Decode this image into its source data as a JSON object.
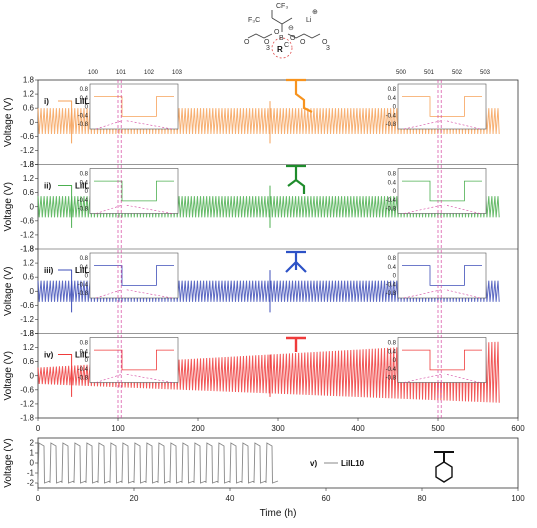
{
  "chart_data": [
    {
      "type": "line",
      "xlim": [
        0,
        600
      ],
      "ylim": [
        -1.8,
        1.8
      ],
      "xlabel": "",
      "ylabel": "Voltage (V)",
      "xticks": [
        "0",
        "100",
        "200",
        "300",
        "400",
        "500",
        "600"
      ],
      "yticks": [
        "1.8",
        "1.2",
        "0.6",
        "0",
        "-0.6",
        "-1.2",
        "-1.8"
      ],
      "series": [
        {
          "name": "LiIL2",
          "label": "i)",
          "color": "#f6a25a",
          "x_range": [
            0,
            575
          ],
          "envelope_top": [
            0.6,
            0.6
          ],
          "envelope_bottom": [
            -0.5,
            -0.5
          ]
        },
        {
          "name": "LiIL7",
          "label": "ii)",
          "color": "#4caf50",
          "x_range": [
            0,
            575
          ],
          "envelope_top": [
            0.45,
            0.45
          ],
          "envelope_bottom": [
            -0.45,
            -0.45
          ]
        },
        {
          "name": "LiIL8",
          "label": "iii)",
          "color": "#3f4fb8",
          "x_range": [
            0,
            575
          ],
          "envelope_top": [
            0.45,
            0.45
          ],
          "envelope_bottom": [
            -0.45,
            -0.45
          ]
        },
        {
          "name": "LiIL9",
          "label": "iv)",
          "color": "#ef3b3b",
          "x_range": [
            0,
            575
          ],
          "envelope_top": [
            0.35,
            1.45
          ],
          "envelope_bottom": [
            -0.35,
            -1.15
          ]
        }
      ],
      "inset_left": {
        "xticks": [
          "100",
          "101",
          "102",
          "103"
        ],
        "yticks": [
          "0.8",
          "0.4",
          "0",
          "-0.4",
          "-0.8"
        ]
      },
      "inset_right": {
        "xticks": [
          "500",
          "501",
          "502",
          "503"
        ],
        "yticks": [
          "0.8",
          "0.4",
          "0",
          "-0.4",
          "-0.8"
        ]
      }
    },
    {
      "type": "line",
      "xlim": [
        0,
        100
      ],
      "ylim": [
        -2.5,
        2.5
      ],
      "xlabel": "Time (h)",
      "ylabel": "Voltage (V)",
      "xticks": [
        "0",
        "20",
        "40",
        "60",
        "80",
        "100"
      ],
      "yticks": [
        "2",
        "1",
        "0",
        "-1",
        "-2"
      ],
      "series": [
        {
          "name": "LiIL10",
          "label": "v)",
          "color": "#888888",
          "x_range": [
            0,
            50
          ],
          "envelope_top": [
            2.0,
            2.0
          ],
          "envelope_bottom": [
            -2.0,
            -2.0
          ]
        }
      ]
    }
  ],
  "structure": {
    "labels": [
      "CF₃",
      "F₃C",
      "Li",
      "⊕",
      "⊖",
      "B",
      "O",
      "O",
      "O",
      "O",
      "O",
      "O",
      "3",
      "3",
      "R",
      "C"
    ],
    "colors": {
      "iv": "#ef3b3b",
      "iii": "#2d52c6",
      "ii": "#1f8c2c",
      "i": "#f7931e",
      "v": "#111111"
    }
  }
}
